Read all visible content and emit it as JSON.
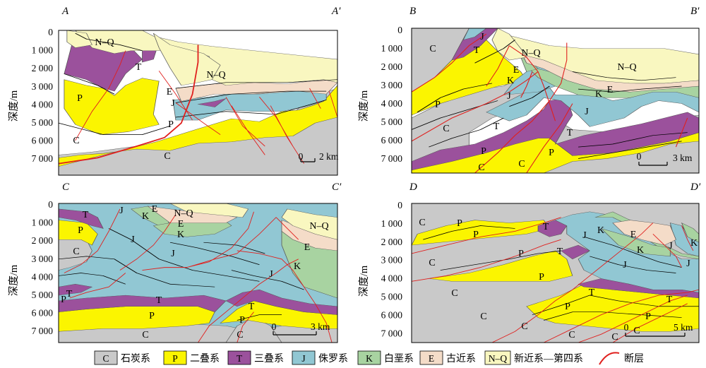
{
  "colors": {
    "C": "#c9c9c9",
    "P": "#fbf500",
    "T": "#9b519c",
    "J": "#91c7d3",
    "K": "#a8d3a1",
    "E": "#f4dcc8",
    "NQ": "#f9f7c0",
    "fault": "#e0201e"
  },
  "common": {
    "ylabel": "深度/m",
    "depth_ticks": [
      "0",
      "1 000",
      "2 000",
      "3 000",
      "4 000",
      "5 000",
      "6 000",
      "7 000"
    ]
  },
  "panels": [
    {
      "title_left": "A",
      "title_right": "A′",
      "scale_bar": {
        "zero": "0",
        "label": "2 km"
      },
      "unit_labels": [
        "N–Q",
        "T",
        "P",
        "E",
        "J",
        "P",
        "C",
        "N–Q",
        "C"
      ]
    },
    {
      "title_left": "B",
      "title_right": "B′",
      "scale_bar": {
        "zero": "0",
        "label": "3 km"
      },
      "unit_labels": [
        "J",
        "C",
        "T",
        "N–Q",
        "N–Q",
        "E",
        "K",
        "E",
        "K",
        "J",
        "P",
        "J",
        "C",
        "T",
        "T",
        "P",
        "P",
        "C",
        "C"
      ]
    },
    {
      "title_left": "C",
      "title_right": "C′",
      "scale_bar": {
        "zero": "0",
        "label": "3 km"
      },
      "unit_labels": [
        "T",
        "J",
        "E",
        "N–Q",
        "K",
        "E",
        "P",
        "K",
        "N–Q",
        "J",
        "C",
        "E",
        "J",
        "K",
        "J",
        "P",
        "T",
        "T",
        "P",
        "T",
        "P",
        "C",
        "C"
      ]
    },
    {
      "title_left": "D",
      "title_right": "D′",
      "scale_bar": {
        "zero": "0",
        "label": "5 km"
      },
      "unit_labels": [
        "C",
        "P",
        "P",
        "T",
        "J",
        "K",
        "E",
        "C",
        "P",
        "J",
        "K",
        "J",
        "K",
        "J",
        "T",
        "P",
        "C",
        "T",
        "T",
        "C",
        "P",
        "P",
        "C",
        "C",
        "C",
        "C"
      ]
    }
  ],
  "legend": [
    {
      "code": "C",
      "label": "石炭系",
      "color_key": "C"
    },
    {
      "code": "P",
      "label": "二叠系",
      "color_key": "P"
    },
    {
      "code": "T",
      "label": "三叠系",
      "color_key": "T"
    },
    {
      "code": "J",
      "label": "侏罗系",
      "color_key": "J"
    },
    {
      "code": "K",
      "label": "白垩系",
      "color_key": "K"
    },
    {
      "code": "E",
      "label": "古近系",
      "color_key": "E"
    },
    {
      "code": "N–Q",
      "label": "新近系—第四系",
      "color_key": "NQ"
    },
    {
      "code": "",
      "label": "断层",
      "color_key": "fault"
    }
  ]
}
